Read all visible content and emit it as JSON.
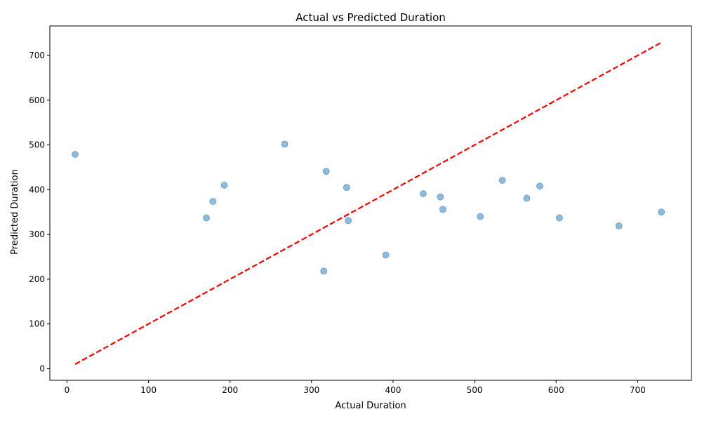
{
  "chart_data": {
    "type": "scatter",
    "title": "Actual vs Predicted Duration",
    "xlabel": "Actual Duration",
    "ylabel": "Predicted Duration",
    "xlim": [
      -21,
      766
    ],
    "ylim": [
      -26,
      766
    ],
    "xticks": [
      0,
      100,
      200,
      300,
      400,
      500,
      600,
      700
    ],
    "yticks": [
      0,
      100,
      200,
      300,
      400,
      500,
      600,
      700
    ],
    "grid": false,
    "legend": "none",
    "point_color": "#1f77b4",
    "reference_line": {
      "from": [
        10,
        10
      ],
      "to": [
        730,
        730
      ],
      "color": "#ff0000",
      "style": "dashed"
    },
    "points": [
      {
        "x": 10,
        "y": 479
      },
      {
        "x": 171,
        "y": 337
      },
      {
        "x": 179,
        "y": 374
      },
      {
        "x": 193,
        "y": 410
      },
      {
        "x": 267,
        "y": 502
      },
      {
        "x": 315,
        "y": 218
      },
      {
        "x": 318,
        "y": 441
      },
      {
        "x": 343,
        "y": 405
      },
      {
        "x": 345,
        "y": 331
      },
      {
        "x": 391,
        "y": 254
      },
      {
        "x": 437,
        "y": 391
      },
      {
        "x": 458,
        "y": 384
      },
      {
        "x": 461,
        "y": 356
      },
      {
        "x": 507,
        "y": 340
      },
      {
        "x": 534,
        "y": 421
      },
      {
        "x": 564,
        "y": 381
      },
      {
        "x": 580,
        "y": 408
      },
      {
        "x": 604,
        "y": 337
      },
      {
        "x": 677,
        "y": 319
      },
      {
        "x": 729,
        "y": 350
      }
    ]
  }
}
